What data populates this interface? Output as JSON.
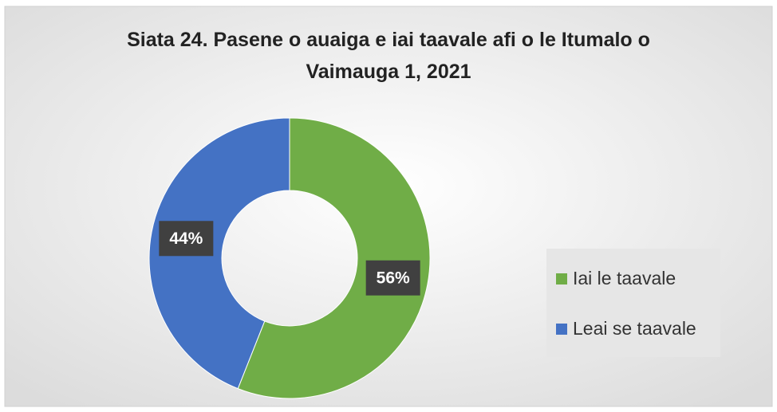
{
  "chart_data": {
    "type": "donut",
    "title": "Siata 24. Pasene o auaiga e iai taavale afi o le Itumalo o Vaimauga 1, 2021",
    "categories": [
      "Iai le taavale",
      "Leai se taavale"
    ],
    "values": [
      56,
      44
    ],
    "value_labels": [
      "56%",
      "44%"
    ],
    "colors": [
      "#70ad47",
      "#4472c4"
    ],
    "legend": "right"
  }
}
